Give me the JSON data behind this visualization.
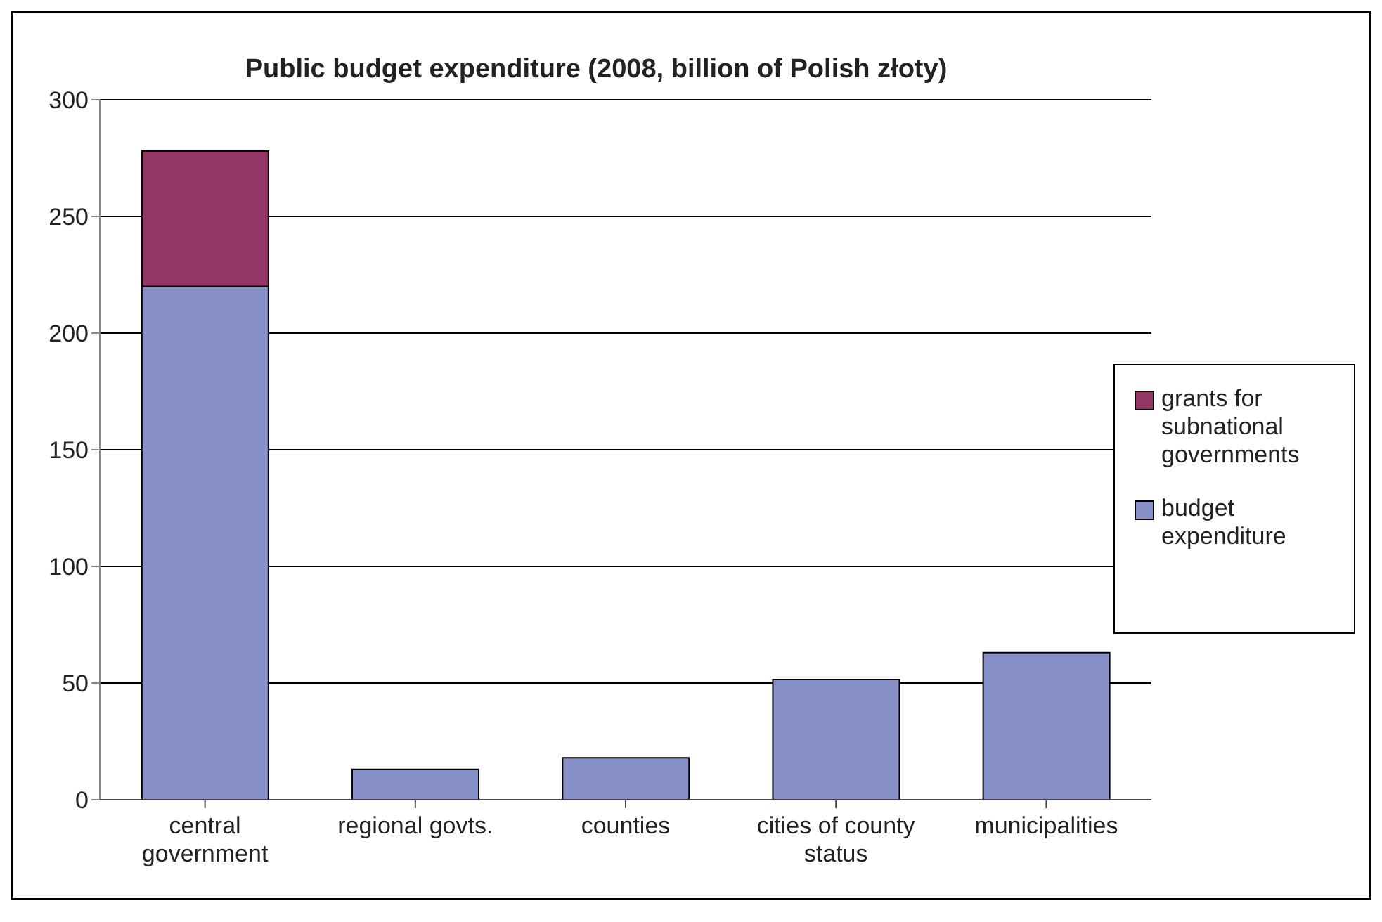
{
  "chart_data": {
    "type": "bar",
    "title": "Public budget expenditure (2008, billion of Polish złoty)",
    "categories": [
      "central government",
      "regional govts.",
      "counties",
      "cities of county status",
      "municipalities"
    ],
    "stacked": true,
    "series": [
      {
        "name": "budget expenditure",
        "color": "#8890c8",
        "values": [
          220,
          13,
          18,
          51.5,
          63
        ]
      },
      {
        "name": "grants for subnational governments",
        "color": "#953766",
        "values": [
          58,
          null,
          null,
          null,
          null
        ]
      }
    ],
    "ylim": [
      0,
      300
    ],
    "yticks": [
      0,
      50,
      100,
      150,
      200,
      250,
      300
    ],
    "grid": "y",
    "legend": "right"
  }
}
